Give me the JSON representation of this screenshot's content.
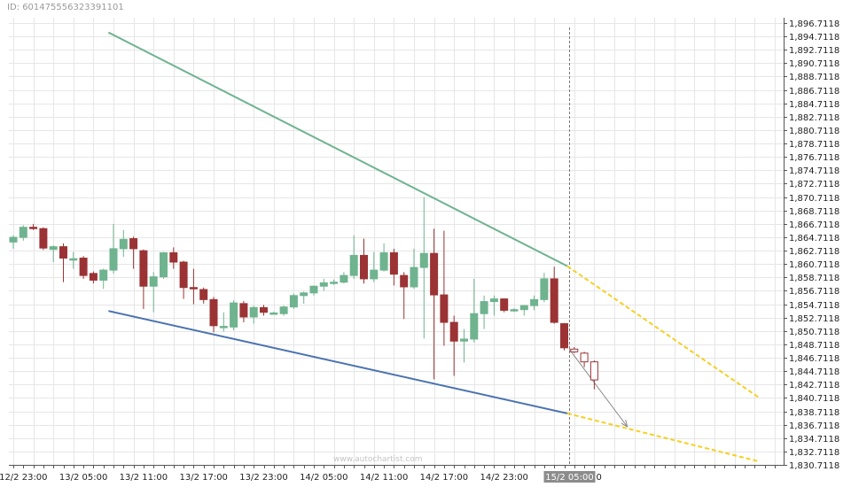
{
  "header": {
    "chart_id": "ID: 601475556323391101"
  },
  "watermark": "www.autochartist.com",
  "colors": {
    "bull": "#6fb38f",
    "bear": "#9b3335",
    "resistance": "#6fb38f",
    "support": "#4a72b0",
    "projection": "#f5d020",
    "forecast_arrow": "#888888",
    "grid": "#e6e6e6",
    "current_time_label_bg": "#8c8c8c"
  },
  "chart_data": {
    "type": "candlestick",
    "title": "",
    "xlabel": "",
    "ylabel": "",
    "ylim": [
      1830.7118,
      1896.7118
    ],
    "y_ticks": [
      "1,896.7118",
      "1,894.7118",
      "1,892.7118",
      "1,890.7118",
      "1,888.7118",
      "1,886.7118",
      "1,884.7118",
      "1,882.7118",
      "1,880.7118",
      "1,878.7118",
      "1,876.7118",
      "1,874.7118",
      "1,872.7118",
      "1,870.7118",
      "1,868.7118",
      "1,866.7118",
      "1,864.7118",
      "1,862.7118",
      "1,860.7118",
      "1,858.7118",
      "1,856.7118",
      "1,854.7118",
      "1,852.7118",
      "1,850.7118",
      "1,848.7118",
      "1,846.7118",
      "1,844.7118",
      "1,842.7118",
      "1,840.7118",
      "1,838.7118",
      "1,836.7118",
      "1,834.7118",
      "1,832.7118",
      "1,830.7118"
    ],
    "x_ticks": [
      {
        "label": "12/2 23:00",
        "i": 1
      },
      {
        "label": "13/2 05:00",
        "i": 7
      },
      {
        "label": "13/2 11:00",
        "i": 13
      },
      {
        "label": "13/2 17:00",
        "i": 19
      },
      {
        "label": "13/2 23:00",
        "i": 25
      },
      {
        "label": "14/2 05:00",
        "i": 31
      },
      {
        "label": "14/2 11:00",
        "i": 37
      },
      {
        "label": "14/2 17:00",
        "i": 43
      },
      {
        "label": "14/2 23:00",
        "i": 49
      }
    ],
    "current_time": {
      "label": "15/2 05:00",
      "i": 55.5,
      "suffix": "0"
    },
    "candles": [
      {
        "o": 1864.0,
        "h": 1865.0,
        "l": 1863.0,
        "c": 1864.7
      },
      {
        "o": 1864.7,
        "h": 1866.5,
        "l": 1864.2,
        "c": 1866.2
      },
      {
        "o": 1866.2,
        "h": 1866.7,
        "l": 1865.8,
        "c": 1866.1
      },
      {
        "o": 1866.0,
        "h": 1866.2,
        "l": 1862.8,
        "c": 1863.1
      },
      {
        "o": 1862.9,
        "h": 1863.5,
        "l": 1861.0,
        "c": 1863.3
      },
      {
        "o": 1863.3,
        "h": 1863.8,
        "l": 1858.0,
        "c": 1861.6
      },
      {
        "o": 1861.3,
        "h": 1862.5,
        "l": 1860.0,
        "c": 1861.5
      },
      {
        "o": 1861.6,
        "h": 1861.9,
        "l": 1858.5,
        "c": 1859.0
      },
      {
        "o": 1859.3,
        "h": 1859.6,
        "l": 1857.8,
        "c": 1858.3
      },
      {
        "o": 1858.3,
        "h": 1860.0,
        "l": 1857.0,
        "c": 1859.8
      },
      {
        "o": 1859.8,
        "h": 1866.7,
        "l": 1859.3,
        "c": 1863.0
      },
      {
        "o": 1863.0,
        "h": 1865.8,
        "l": 1861.8,
        "c": 1864.4
      },
      {
        "o": 1864.5,
        "h": 1864.8,
        "l": 1860.0,
        "c": 1863.0
      },
      {
        "o": 1862.7,
        "h": 1862.9,
        "l": 1854.0,
        "c": 1857.4
      },
      {
        "o": 1857.4,
        "h": 1859.5,
        "l": 1853.5,
        "c": 1858.8
      },
      {
        "o": 1858.8,
        "h": 1862.5,
        "l": 1858.5,
        "c": 1862.4
      },
      {
        "o": 1862.4,
        "h": 1863.2,
        "l": 1860.0,
        "c": 1861.0
      },
      {
        "o": 1861.0,
        "h": 1861.2,
        "l": 1855.5,
        "c": 1857.2
      },
      {
        "o": 1857.2,
        "h": 1860.0,
        "l": 1854.7,
        "c": 1857.0
      },
      {
        "o": 1856.9,
        "h": 1857.2,
        "l": 1854.8,
        "c": 1855.4
      },
      {
        "o": 1855.4,
        "h": 1855.8,
        "l": 1850.5,
        "c": 1851.5
      },
      {
        "o": 1851.4,
        "h": 1853.5,
        "l": 1850.6,
        "c": 1851.4
      },
      {
        "o": 1851.3,
        "h": 1855.3,
        "l": 1850.8,
        "c": 1854.9
      },
      {
        "o": 1854.8,
        "h": 1855.2,
        "l": 1852.0,
        "c": 1852.8
      },
      {
        "o": 1852.8,
        "h": 1854.5,
        "l": 1851.8,
        "c": 1854.2
      },
      {
        "o": 1854.2,
        "h": 1854.6,
        "l": 1853.0,
        "c": 1853.5
      },
      {
        "o": 1853.4,
        "h": 1853.6,
        "l": 1853.2,
        "c": 1853.4
      },
      {
        "o": 1853.3,
        "h": 1854.5,
        "l": 1853.0,
        "c": 1854.3
      },
      {
        "o": 1854.3,
        "h": 1856.3,
        "l": 1854.0,
        "c": 1856.0
      },
      {
        "o": 1856.0,
        "h": 1856.6,
        "l": 1854.8,
        "c": 1856.4
      },
      {
        "o": 1856.4,
        "h": 1857.5,
        "l": 1856.0,
        "c": 1857.4
      },
      {
        "o": 1857.4,
        "h": 1858.5,
        "l": 1856.7,
        "c": 1857.9
      },
      {
        "o": 1857.9,
        "h": 1858.4,
        "l": 1857.6,
        "c": 1858.0
      },
      {
        "o": 1858.0,
        "h": 1859.5,
        "l": 1857.8,
        "c": 1859.0
      },
      {
        "o": 1859.0,
        "h": 1865.0,
        "l": 1858.5,
        "c": 1862.0
      },
      {
        "o": 1862.0,
        "h": 1864.5,
        "l": 1857.8,
        "c": 1858.5
      },
      {
        "o": 1858.5,
        "h": 1862.5,
        "l": 1858.0,
        "c": 1859.8
      },
      {
        "o": 1859.8,
        "h": 1863.8,
        "l": 1859.6,
        "c": 1862.4
      },
      {
        "o": 1862.4,
        "h": 1863.0,
        "l": 1857.5,
        "c": 1859.2
      },
      {
        "o": 1859.0,
        "h": 1859.5,
        "l": 1852.5,
        "c": 1857.3
      },
      {
        "o": 1857.3,
        "h": 1863.0,
        "l": 1857.0,
        "c": 1860.2
      },
      {
        "o": 1860.2,
        "h": 1870.7,
        "l": 1849.6,
        "c": 1862.3
      },
      {
        "o": 1862.3,
        "h": 1866.0,
        "l": 1843.5,
        "c": 1856.1
      },
      {
        "o": 1856.1,
        "h": 1865.7,
        "l": 1848.5,
        "c": 1852.0
      },
      {
        "o": 1852.0,
        "h": 1853.0,
        "l": 1844.0,
        "c": 1849.2
      },
      {
        "o": 1849.2,
        "h": 1851.0,
        "l": 1846.0,
        "c": 1849.5
      },
      {
        "o": 1849.5,
        "h": 1858.5,
        "l": 1849.0,
        "c": 1853.3
      },
      {
        "o": 1853.3,
        "h": 1856.0,
        "l": 1851.0,
        "c": 1855.1
      },
      {
        "o": 1855.1,
        "h": 1856.0,
        "l": 1853.0,
        "c": 1855.5
      },
      {
        "o": 1855.5,
        "h": 1855.6,
        "l": 1853.5,
        "c": 1853.8
      },
      {
        "o": 1853.8,
        "h": 1854.1,
        "l": 1853.6,
        "c": 1853.9
      },
      {
        "o": 1853.9,
        "h": 1854.6,
        "l": 1853.0,
        "c": 1854.5
      },
      {
        "o": 1854.5,
        "h": 1856.0,
        "l": 1853.8,
        "c": 1855.4
      },
      {
        "o": 1855.4,
        "h": 1859.4,
        "l": 1855.0,
        "c": 1858.5
      },
      {
        "o": 1858.5,
        "h": 1860.3,
        "l": 1851.8,
        "c": 1852.0
      },
      {
        "o": 1851.8,
        "h": 1851.9,
        "l": 1847.8,
        "c": 1848.2
      }
    ],
    "forecast_candles": [
      {
        "o": 1848.0,
        "h": 1848.3,
        "l": 1847.4,
        "c": 1847.6
      },
      {
        "o": 1847.4,
        "h": 1847.6,
        "l": 1845.3,
        "c": 1846.1
      },
      {
        "o": 1846.1,
        "h": 1846.3,
        "l": 1842.0,
        "c": 1843.4
      }
    ],
    "pattern": {
      "resistance_line": {
        "x0": 9.5,
        "y0": 1895.3,
        "x1": 55.3,
        "y1": 1860.4
      },
      "support_line": {
        "x0": 9.5,
        "y0": 1853.7,
        "x1": 55.3,
        "y1": 1838.4
      },
      "resistance_projection": {
        "x0": 55.3,
        "y0": 1860.4,
        "x1": 74.5,
        "y1": 1840.7
      },
      "support_projection": {
        "x0": 55.3,
        "y0": 1838.4,
        "x1": 74.5,
        "y1": 1831.2
      },
      "forecast_arrow": {
        "x0": 55.5,
        "y0": 1848.0,
        "x1": 61.3,
        "y1": 1836.4
      }
    }
  }
}
